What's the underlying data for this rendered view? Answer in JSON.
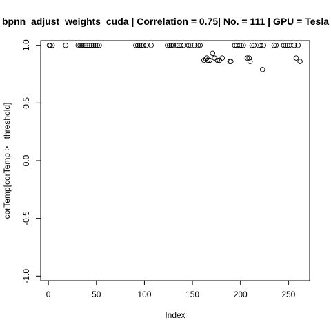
{
  "chart_data": {
    "type": "scatter",
    "title": "bpnn_adjust_weights_cuda | Correlation = 0.75| No. = 111 | GPU = Tesla",
    "xlabel": "Index",
    "ylabel": "corTemp[corTemp >= threshold]",
    "xlim": [
      -8,
      272
    ],
    "ylim": [
      -1.04,
      1.04
    ],
    "xticks": [
      0,
      50,
      100,
      150,
      200,
      250
    ],
    "yticks": [
      -1.0,
      -0.5,
      0.0,
      0.5,
      1.0
    ],
    "ytick_labels": [
      "-1.0",
      "-0.5",
      "0.0",
      "0.5",
      "1.0"
    ],
    "grid": false,
    "legend": "none",
    "point_style": "open-circle",
    "color": "#000000",
    "points": [
      {
        "x": 1,
        "y": 1.0
      },
      {
        "x": 2,
        "y": 1.0
      },
      {
        "x": 4,
        "y": 1.0
      },
      {
        "x": 18,
        "y": 1.0
      },
      {
        "x": 31,
        "y": 1.0
      },
      {
        "x": 33,
        "y": 1.0
      },
      {
        "x": 35,
        "y": 1.0
      },
      {
        "x": 37,
        "y": 1.0
      },
      {
        "x": 39,
        "y": 1.0
      },
      {
        "x": 41,
        "y": 1.0
      },
      {
        "x": 43,
        "y": 1.0
      },
      {
        "x": 45,
        "y": 1.0
      },
      {
        "x": 47,
        "y": 1.0
      },
      {
        "x": 49,
        "y": 1.0
      },
      {
        "x": 51,
        "y": 1.0
      },
      {
        "x": 53,
        "y": 1.0
      },
      {
        "x": 91,
        "y": 1.0
      },
      {
        "x": 93,
        "y": 1.0
      },
      {
        "x": 95,
        "y": 1.0
      },
      {
        "x": 97,
        "y": 1.0
      },
      {
        "x": 99,
        "y": 1.0
      },
      {
        "x": 102,
        "y": 1.0
      },
      {
        "x": 107,
        "y": 1.0
      },
      {
        "x": 124,
        "y": 1.0
      },
      {
        "x": 126,
        "y": 1.0
      },
      {
        "x": 128,
        "y": 1.0
      },
      {
        "x": 130,
        "y": 1.0
      },
      {
        "x": 134,
        "y": 1.0
      },
      {
        "x": 136,
        "y": 1.0
      },
      {
        "x": 138,
        "y": 1.0
      },
      {
        "x": 141,
        "y": 1.0
      },
      {
        "x": 146,
        "y": 1.0
      },
      {
        "x": 148,
        "y": 1.0
      },
      {
        "x": 152,
        "y": 1.0
      },
      {
        "x": 156,
        "y": 1.0
      },
      {
        "x": 158,
        "y": 1.0
      },
      {
        "x": 162,
        "y": 0.87
      },
      {
        "x": 164,
        "y": 0.88
      },
      {
        "x": 165,
        "y": 0.89
      },
      {
        "x": 166,
        "y": 0.87
      },
      {
        "x": 168,
        "y": 0.87
      },
      {
        "x": 171,
        "y": 0.93
      },
      {
        "x": 173,
        "y": 0.89
      },
      {
        "x": 176,
        "y": 0.87
      },
      {
        "x": 178,
        "y": 0.87
      },
      {
        "x": 181,
        "y": 0.89
      },
      {
        "x": 189,
        "y": 0.86
      },
      {
        "x": 190,
        "y": 0.86
      },
      {
        "x": 194,
        "y": 1.0
      },
      {
        "x": 196,
        "y": 1.0
      },
      {
        "x": 199,
        "y": 1.0
      },
      {
        "x": 201,
        "y": 1.0
      },
      {
        "x": 203,
        "y": 1.0
      },
      {
        "x": 207,
        "y": 0.89
      },
      {
        "x": 209,
        "y": 0.89
      },
      {
        "x": 210,
        "y": 0.86
      },
      {
        "x": 212,
        "y": 1.0
      },
      {
        "x": 214,
        "y": 1.0
      },
      {
        "x": 219,
        "y": 1.0
      },
      {
        "x": 221,
        "y": 1.0
      },
      {
        "x": 223,
        "y": 0.79
      },
      {
        "x": 224,
        "y": 1.0
      },
      {
        "x": 235,
        "y": 1.0
      },
      {
        "x": 237,
        "y": 1.0
      },
      {
        "x": 245,
        "y": 1.0
      },
      {
        "x": 247,
        "y": 1.0
      },
      {
        "x": 249,
        "y": 1.0
      },
      {
        "x": 251,
        "y": 1.0
      },
      {
        "x": 256,
        "y": 1.0
      },
      {
        "x": 258,
        "y": 0.89
      },
      {
        "x": 260,
        "y": 1.0
      },
      {
        "x": 262,
        "y": 0.86
      }
    ]
  }
}
